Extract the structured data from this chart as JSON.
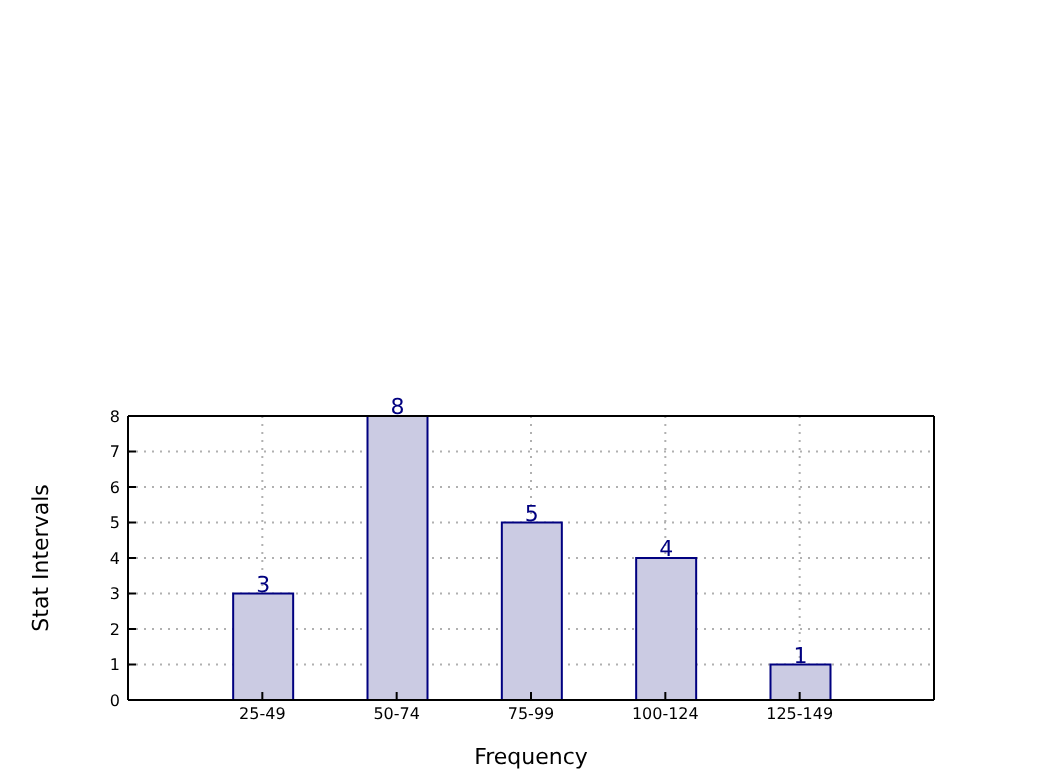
{
  "chart_data": {
    "type": "bar",
    "xlabel": "Frequency",
    "ylabel": "Stat Intervals",
    "categories": [
      "25-49",
      "50-74",
      "75-99",
      "100-124",
      "125-149"
    ],
    "values": [
      3,
      8,
      5,
      4,
      1
    ],
    "color": "#cbcbe3",
    "ylim": [
      0,
      8
    ],
    "yticks": [
      0,
      1,
      2,
      3,
      4,
      5,
      6,
      7,
      8
    ],
    "grid": true,
    "data_labels": true
  }
}
